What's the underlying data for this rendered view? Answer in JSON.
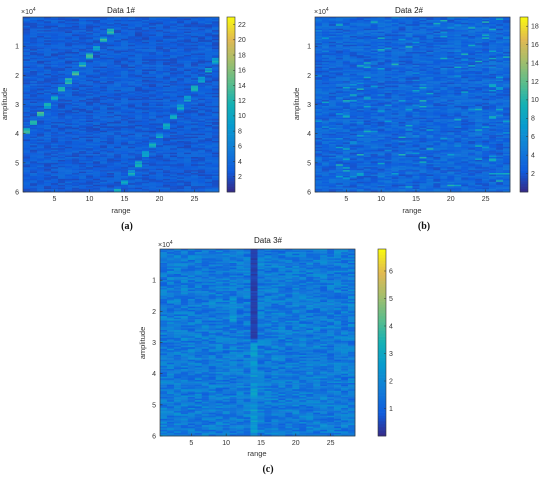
{
  "chart_data": [
    {
      "id": "a",
      "type": "heatmap",
      "panel_label": "(a)",
      "title": "Data 1#",
      "xlabel": "range",
      "ylabel": "amplitude",
      "y_exponent": "×10",
      "y_exponent_power": "4",
      "xlim": [
        0.5,
        28.5
      ],
      "ylim": [
        0,
        6
      ],
      "y_reversed": true,
      "x_ticks": [
        5,
        10,
        15,
        20,
        25
      ],
      "y_ticks": [
        1,
        2,
        3,
        4,
        5,
        6
      ],
      "colorbar_limits": [
        0,
        23
      ],
      "colorbar_ticks": [
        2,
        4,
        6,
        8,
        10,
        12,
        14,
        16,
        18,
        20,
        22
      ],
      "background_level": 3,
      "bright_features": [
        {
          "kind": "diagonal_track",
          "x_start": 1,
          "y_start": 3.9,
          "x_end": 13,
          "y_end": 0.5,
          "peak": 14
        },
        {
          "kind": "diagonal_track",
          "x_start": 14,
          "y_start": 6.0,
          "x_end": 28,
          "y_end": 1.5,
          "peak": 12
        }
      ]
    },
    {
      "id": "b",
      "type": "heatmap",
      "panel_label": "(b)",
      "title": "Data 2#",
      "xlabel": "range",
      "ylabel": "amplitude",
      "y_exponent": "×10",
      "y_exponent_power": "4",
      "xlim": [
        0.5,
        28.5
      ],
      "ylim": [
        0,
        6
      ],
      "y_reversed": true,
      "x_ticks": [
        5,
        10,
        15,
        20,
        25
      ],
      "y_ticks": [
        1,
        2,
        3,
        4,
        5,
        6
      ],
      "colorbar_limits": [
        0,
        19
      ],
      "colorbar_ticks": [
        2,
        4,
        6,
        8,
        10,
        12,
        14,
        16,
        18
      ],
      "background_level": 3,
      "bright_features": [
        {
          "kind": "scattered_patches",
          "x_range": [
            1,
            28
          ],
          "y_range": [
            0,
            6
          ],
          "peak": 10
        }
      ]
    },
    {
      "id": "c",
      "type": "heatmap",
      "panel_label": "(c)",
      "title": "Data 3#",
      "xlabel": "range",
      "ylabel": "amplitude",
      "y_exponent": "×10",
      "y_exponent_power": "4",
      "xlim": [
        0.5,
        28.5
      ],
      "ylim": [
        0,
        6
      ],
      "y_reversed": true,
      "x_ticks": [
        5,
        10,
        15,
        20,
        25
      ],
      "y_ticks": [
        1,
        2,
        3,
        4,
        5,
        6
      ],
      "colorbar_limits": [
        0,
        6.8
      ],
      "colorbar_ticks": [
        1,
        2,
        3,
        4,
        5,
        6
      ],
      "background_level": 1.6,
      "bright_features": [
        {
          "kind": "dark_column",
          "x": 14,
          "y_range": [
            0,
            2.9
          ],
          "level": 0.2
        },
        {
          "kind": "bright_column",
          "x": 14,
          "y_range": [
            3.0,
            6.0
          ],
          "peak": 3.0
        },
        {
          "kind": "bright_column",
          "x": 11,
          "y_range": [
            1.5,
            2.3
          ],
          "peak": 2.8
        }
      ]
    }
  ]
}
